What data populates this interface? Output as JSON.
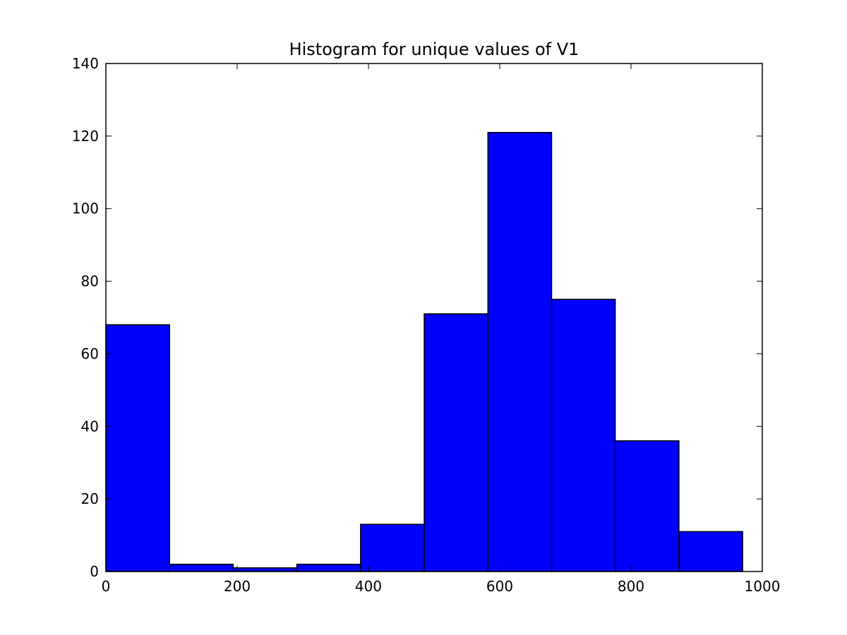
{
  "chart_data": {
    "type": "bar",
    "title": "Histogram for unique values of V1",
    "xlabel": "",
    "ylabel": "",
    "xlim": [
      0,
      1000
    ],
    "ylim": [
      0,
      140
    ],
    "x_ticks": [
      0,
      200,
      400,
      600,
      800,
      1000
    ],
    "y_ticks": [
      0,
      20,
      40,
      60,
      80,
      100,
      120,
      140
    ],
    "bin_edges": [
      0,
      97,
      194,
      291,
      388,
      485,
      582,
      679,
      776,
      873,
      970
    ],
    "values": [
      68,
      2,
      1,
      2,
      13,
      71,
      121,
      75,
      36,
      11
    ],
    "bar_color": "#0000ff",
    "edge_color": "#000000",
    "grid": false,
    "legend": false
  }
}
